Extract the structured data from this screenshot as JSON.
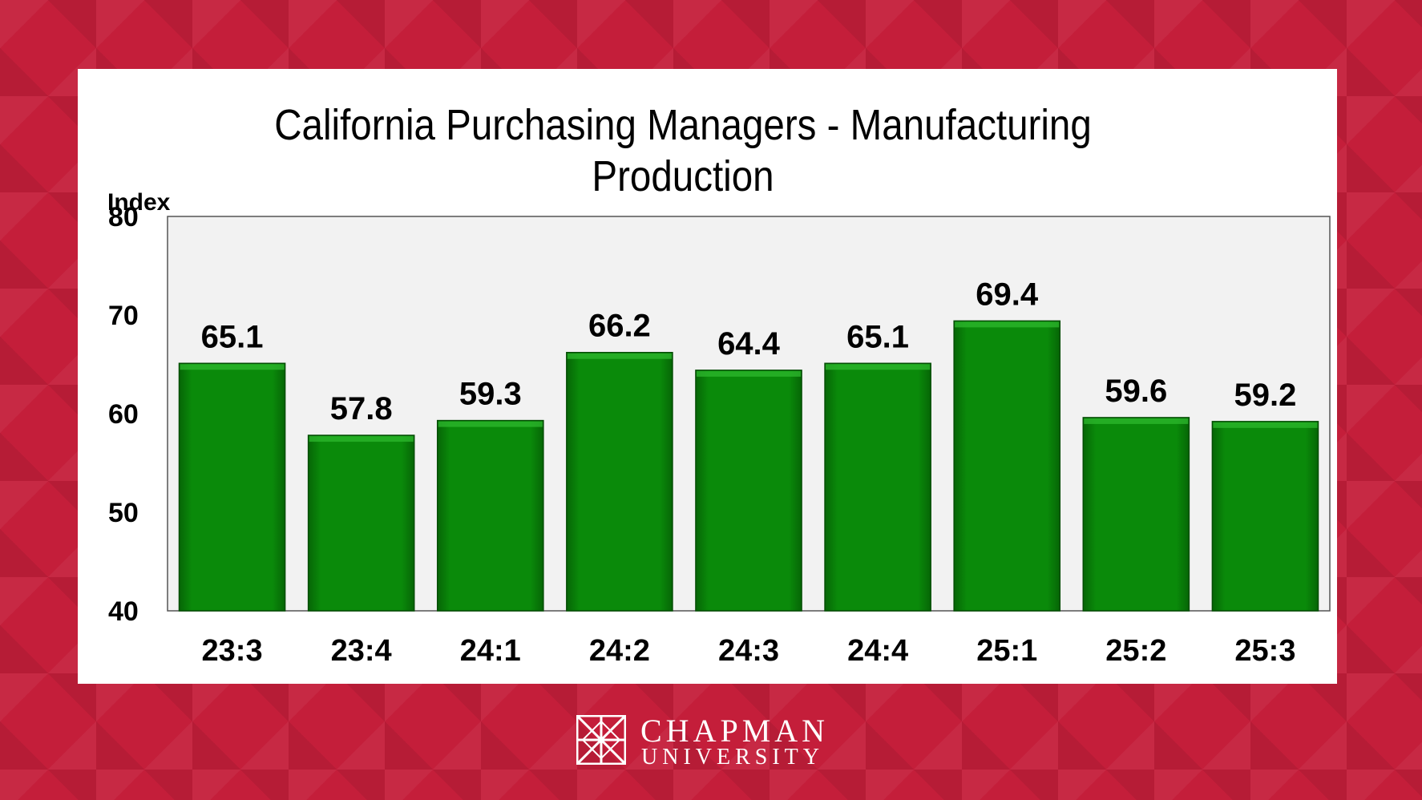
{
  "chart_data": {
    "type": "bar",
    "title_line1": "California Purchasing Managers - Manufacturing",
    "title_line2": "Production",
    "ylabel": "Index",
    "xlabel": "",
    "categories": [
      "23:3",
      "23:4",
      "24:1",
      "24:2",
      "24:3",
      "24:4",
      "25:1",
      "25:2",
      "25:3"
    ],
    "values": [
      65.1,
      57.8,
      59.3,
      66.2,
      64.4,
      65.1,
      69.4,
      59.6,
      59.2
    ],
    "ylim": [
      40,
      80
    ],
    "yticks": [
      40,
      50,
      60,
      70,
      80
    ],
    "grid": false,
    "legend": "none",
    "bar_color": "#0a8a0a",
    "plot_background": "#f2f2f2"
  },
  "branding": {
    "logo_line1": "CHAPMAN",
    "logo_line2": "UNIVERSITY",
    "logo_icon": "chapman-lattice-icon"
  },
  "colors": {
    "background": "#c41e3a",
    "panel": "#ffffff"
  }
}
